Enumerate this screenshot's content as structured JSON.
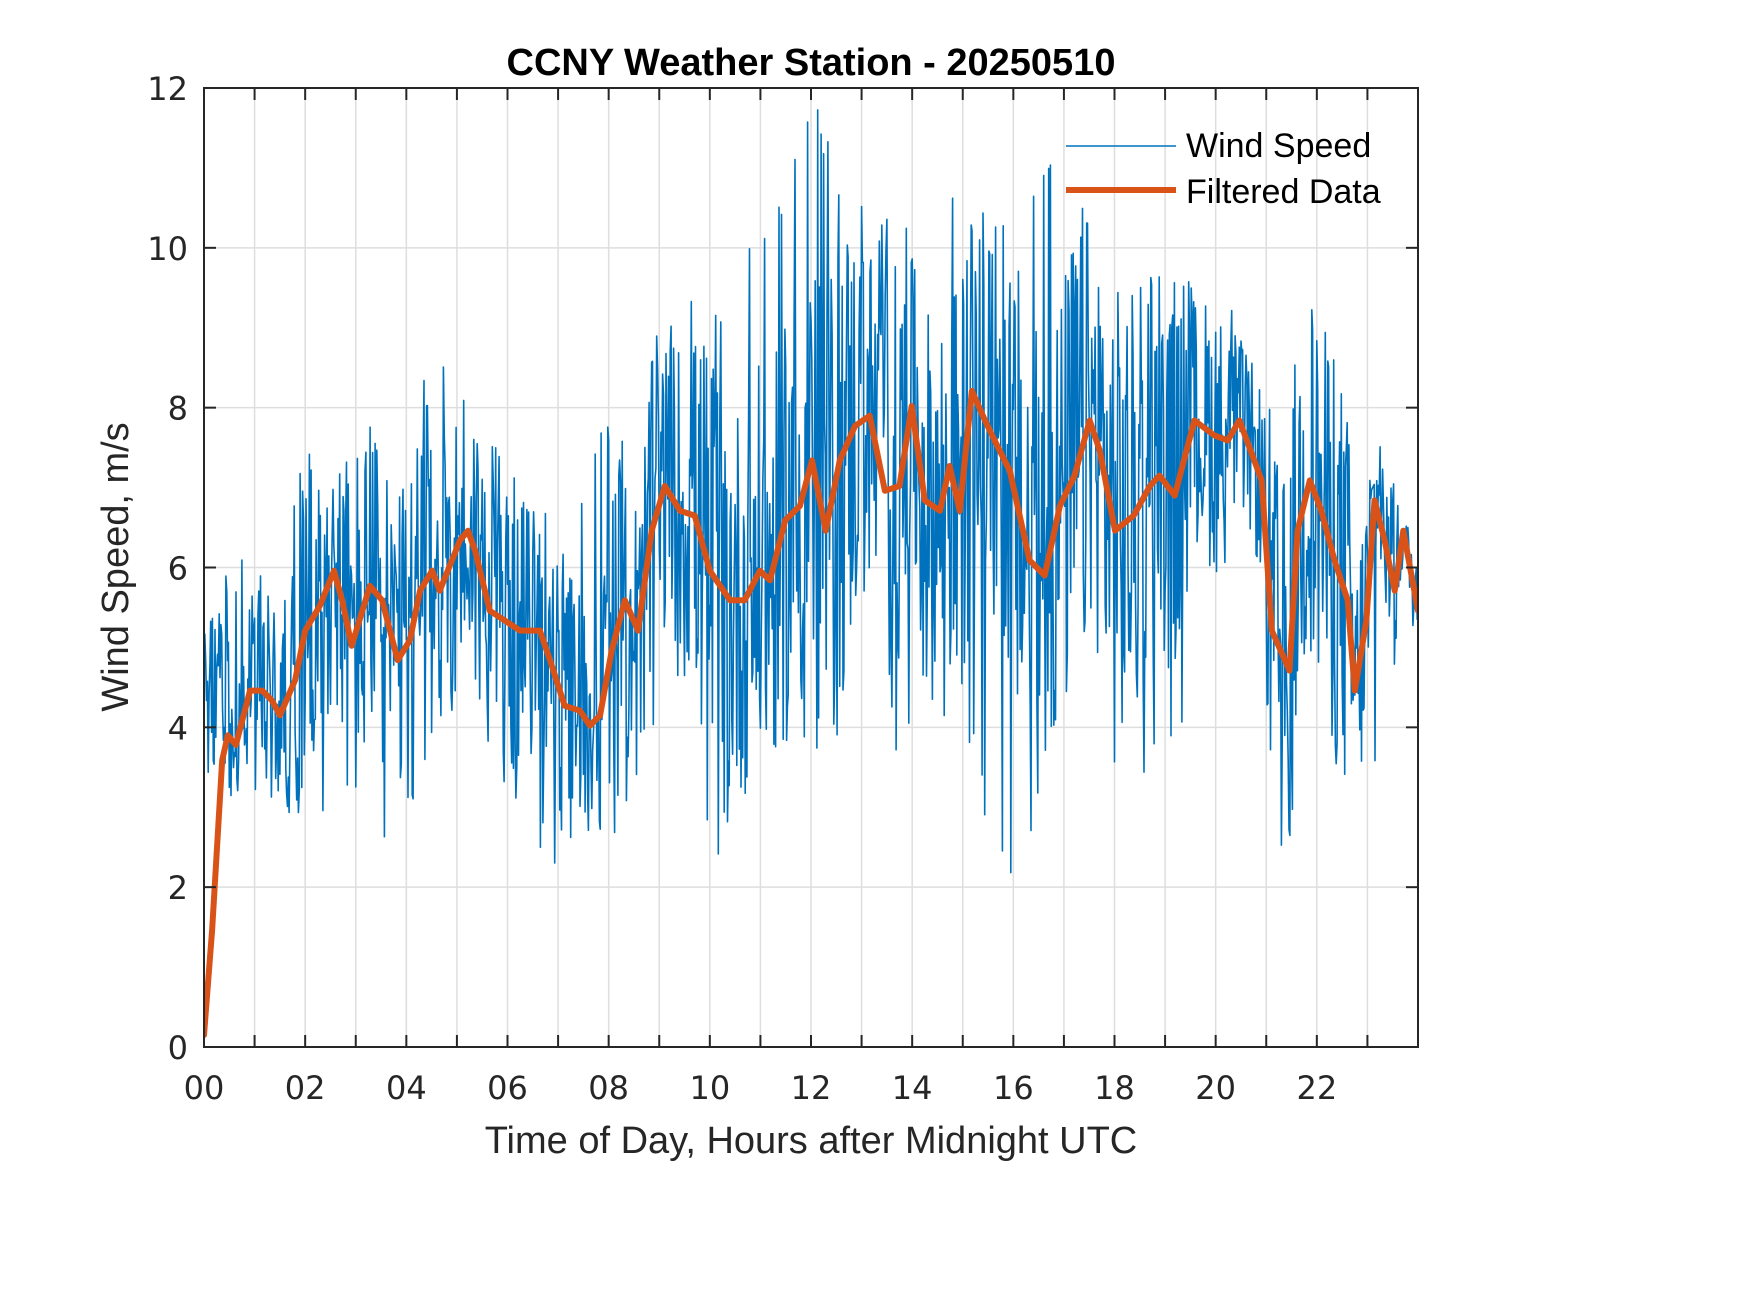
{
  "chart_data": {
    "type": "line",
    "title": "CCNY Weather Station - 20250510",
    "xlabel": "Time of Day, Hours after Midnight UTC",
    "ylabel": "Wind Speed, m/s",
    "xlim": [
      0,
      24
    ],
    "ylim": [
      0,
      12
    ],
    "xticks": [
      0,
      2,
      4,
      6,
      8,
      10,
      12,
      14,
      16,
      18,
      20,
      22
    ],
    "xtick_labels": [
      "00",
      "02",
      "04",
      "06",
      "08",
      "10",
      "12",
      "14",
      "16",
      "18",
      "20",
      "22"
    ],
    "xgrid_step": 1,
    "yticks": [
      0,
      2,
      4,
      6,
      8,
      10,
      12
    ],
    "ytick_labels": [
      "0",
      "2",
      "4",
      "6",
      "8",
      "10",
      "12"
    ],
    "grid": true,
    "legend_position": "top-right",
    "series": [
      {
        "name": "Wind Speed",
        "color": "#0072BD",
        "style": "thin-noisy",
        "description": "High-frequency wind speed samples fluctuating roughly ±2-4 m/s around the filtered trend; extremes range from about 1.6 m/s (near 16h) to about 12 m/s (near 12.5h)",
        "envelope": {
          "x": [
            0,
            1,
            2,
            3,
            4,
            5,
            6,
            7,
            8,
            9,
            10,
            11,
            12,
            13,
            14,
            15,
            16,
            17,
            18,
            19,
            20,
            21,
            22,
            23,
            24
          ],
          "min": [
            3.0,
            3.0,
            2.5,
            2.5,
            2.5,
            4.0,
            3.2,
            2.1,
            2.5,
            4.0,
            2.3,
            2.9,
            3.7,
            2.6,
            4.0,
            3.8,
            1.6,
            3.6,
            2.2,
            3.8,
            3.7,
            2.4,
            1.9,
            3.2,
            3.5
          ],
          "max": [
            5.7,
            6.3,
            7.4,
            8.0,
            8.2,
            8.9,
            7.6,
            6.5,
            8.1,
            9.1,
            9.5,
            10.3,
            12.0,
            10.6,
            10.2,
            10.9,
            10.2,
            11.7,
            10.1,
            9.7,
            9.7,
            8.4,
            9.7,
            8.0,
            6.3
          ]
        }
      },
      {
        "name": "Filtered Data",
        "color": "#D95319",
        "style": "thick",
        "x": [
          0.0,
          0.16,
          0.36,
          0.47,
          0.63,
          0.91,
          1.15,
          1.34,
          1.5,
          1.8,
          2.0,
          2.29,
          2.57,
          2.73,
          2.92,
          3.28,
          3.52,
          3.83,
          4.07,
          4.27,
          4.51,
          4.66,
          5.06,
          5.22,
          5.36,
          5.65,
          6.25,
          6.64,
          6.84,
          7.13,
          7.43,
          7.63,
          7.83,
          8.06,
          8.32,
          8.58,
          8.85,
          9.11,
          9.41,
          9.7,
          10.0,
          10.4,
          10.69,
          10.99,
          11.19,
          11.49,
          11.78,
          12.02,
          12.29,
          12.57,
          12.87,
          13.16,
          13.46,
          13.75,
          13.99,
          14.25,
          14.55,
          14.74,
          14.94,
          15.18,
          15.44,
          15.63,
          15.93,
          16.32,
          16.62,
          16.92,
          17.21,
          17.51,
          17.71,
          18.01,
          18.38,
          18.7,
          18.89,
          19.19,
          19.58,
          19.98,
          20.24,
          20.47,
          20.91,
          21.11,
          21.46,
          21.62,
          21.86,
          22.09,
          22.35,
          22.61,
          22.75,
          22.98,
          23.14,
          23.34,
          23.54,
          23.71,
          24.0
        ],
        "y": [
          0.15,
          1.46,
          3.59,
          3.9,
          3.78,
          4.46,
          4.46,
          4.34,
          4.15,
          4.59,
          5.21,
          5.52,
          5.96,
          5.59,
          5.02,
          5.77,
          5.59,
          4.84,
          5.09,
          5.71,
          5.96,
          5.71,
          6.34,
          6.46,
          6.21,
          5.46,
          5.21,
          5.21,
          4.84,
          4.27,
          4.21,
          4.02,
          4.15,
          4.96,
          5.59,
          5.21,
          6.46,
          7.02,
          6.71,
          6.65,
          5.96,
          5.59,
          5.59,
          5.96,
          5.84,
          6.59,
          6.77,
          7.34,
          6.46,
          7.34,
          7.77,
          7.9,
          6.96,
          7.02,
          8.02,
          6.84,
          6.71,
          7.27,
          6.71,
          8.21,
          7.84,
          7.59,
          7.21,
          6.09,
          5.9,
          6.77,
          7.15,
          7.84,
          7.46,
          6.46,
          6.65,
          7.02,
          7.15,
          6.9,
          7.84,
          7.65,
          7.59,
          7.84,
          7.09,
          5.21,
          4.71,
          6.46,
          7.09,
          6.71,
          6.09,
          5.59,
          4.46,
          5.34,
          6.84,
          6.34,
          5.71,
          6.46,
          5.46
        ]
      }
    ]
  }
}
